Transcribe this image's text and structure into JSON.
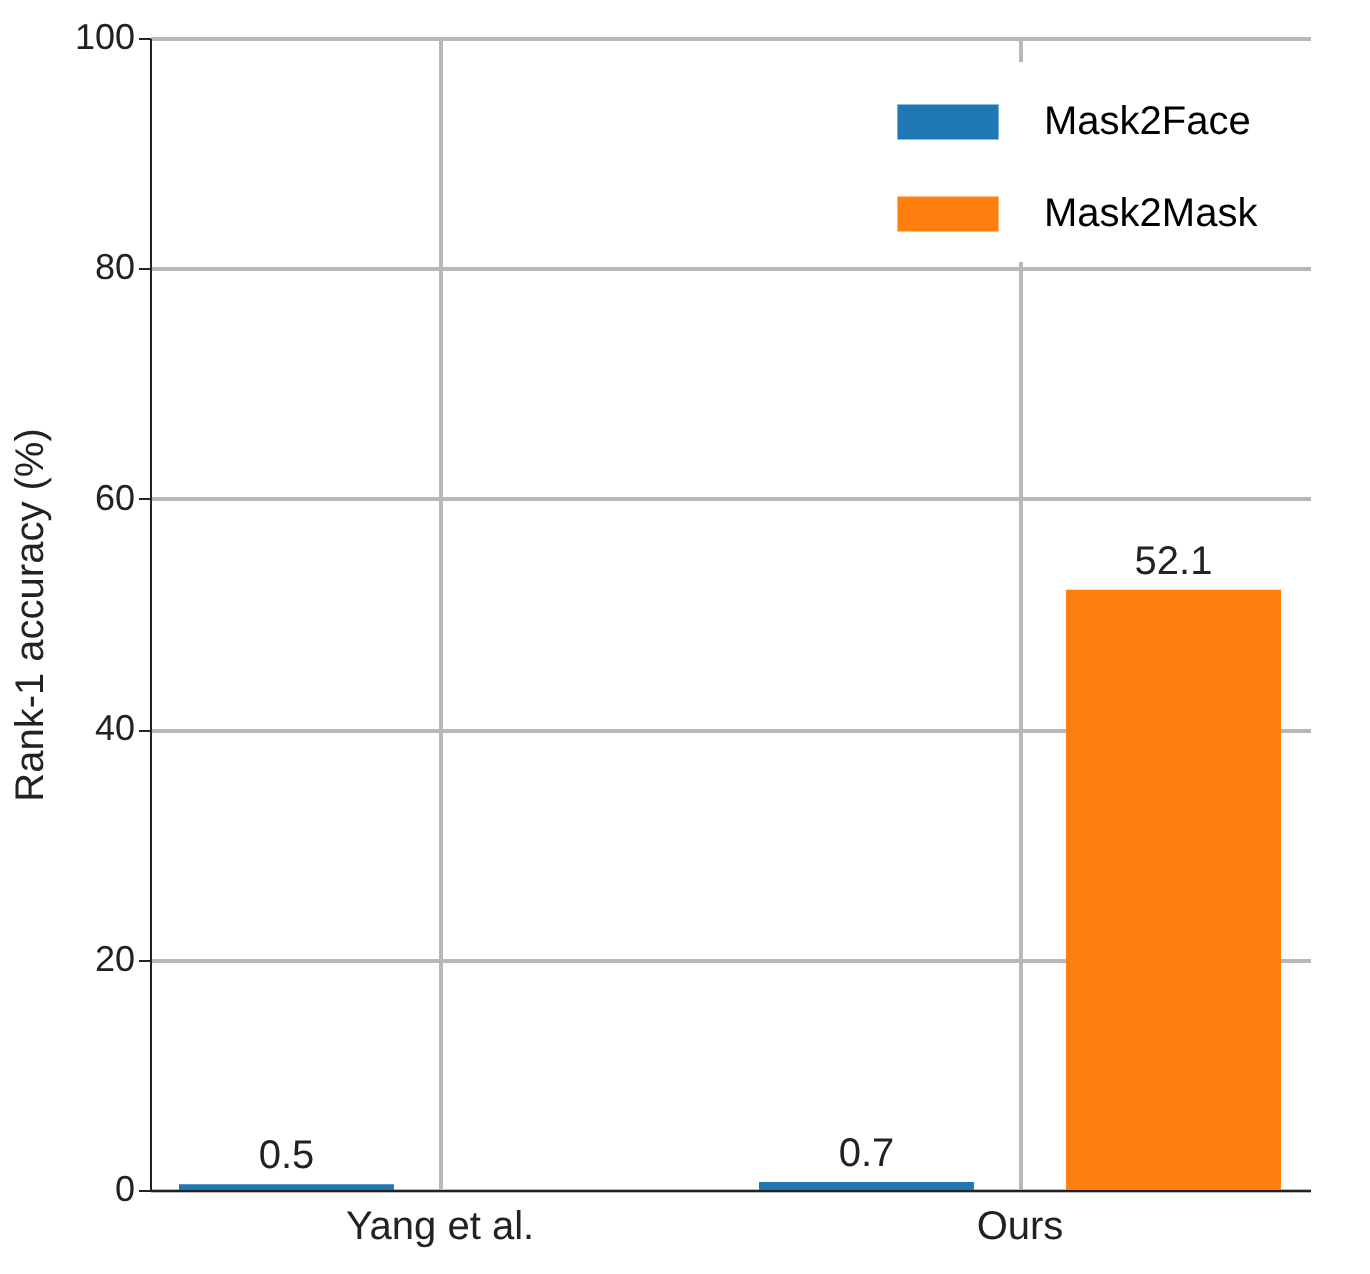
{
  "chart_data": {
    "type": "bar",
    "ylabel": "Rank-1 accuracy (%)",
    "categories": [
      "Yang et al.",
      "Ours"
    ],
    "series": [
      {
        "name": "Mask2Face",
        "color": "#1f77b4",
        "values": [
          0.5,
          0.7
        ]
      },
      {
        "name": "Mask2Mask",
        "color": "#ff7f0e",
        "values": [
          null,
          52.1
        ]
      }
    ],
    "ylim": [
      0,
      100
    ],
    "yticks": [
      0,
      20,
      40,
      60,
      80,
      100
    ],
    "grid": true,
    "legend": "top right",
    "data_labels": true
  }
}
